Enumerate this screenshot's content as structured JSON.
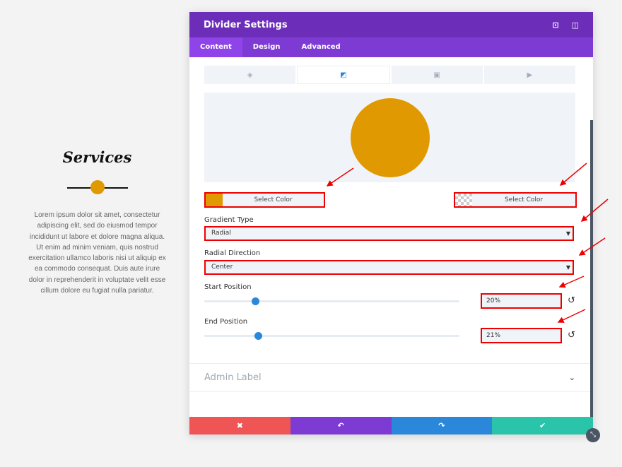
{
  "page": {
    "title": "Services",
    "text": "Lorem ipsum dolor sit amet, consectetur adipiscing elit, sed do eiusmod tempor incididunt ut labore et dolore magna aliqua. Ut enim ad minim veniam, quis nostrud exercitation ullamco laboris nisi ut aliquip ex ea commodo consequat. Duis aute irure dolor in reprehenderit in voluptate velit esse cillum dolore eu fugiat nulla pariatur.",
    "accent": "#e09900"
  },
  "modal": {
    "title": "Divider Settings",
    "tabs": [
      "Content",
      "Design",
      "Advanced"
    ],
    "gradient": {
      "color1": "#e09900",
      "color1_label": "Select Color",
      "color2_label": "Select Color",
      "type_label": "Gradient Type",
      "type_value": "Radial",
      "direction_label": "Radial Direction",
      "direction_value": "Center",
      "start_label": "Start Position",
      "start_value": "20%",
      "start_level": 20,
      "end_label": "End Position",
      "end_value": "21%",
      "end_level": 21
    },
    "admin_label": "Admin Label"
  },
  "colors": {
    "header": "#6c2eb9",
    "tabs": "#7d3bd4",
    "cancel": "#ef5555",
    "undo": "#7d3bd4",
    "redo": "#2b87da",
    "save": "#29c4a9",
    "annotation": "#e00000"
  }
}
